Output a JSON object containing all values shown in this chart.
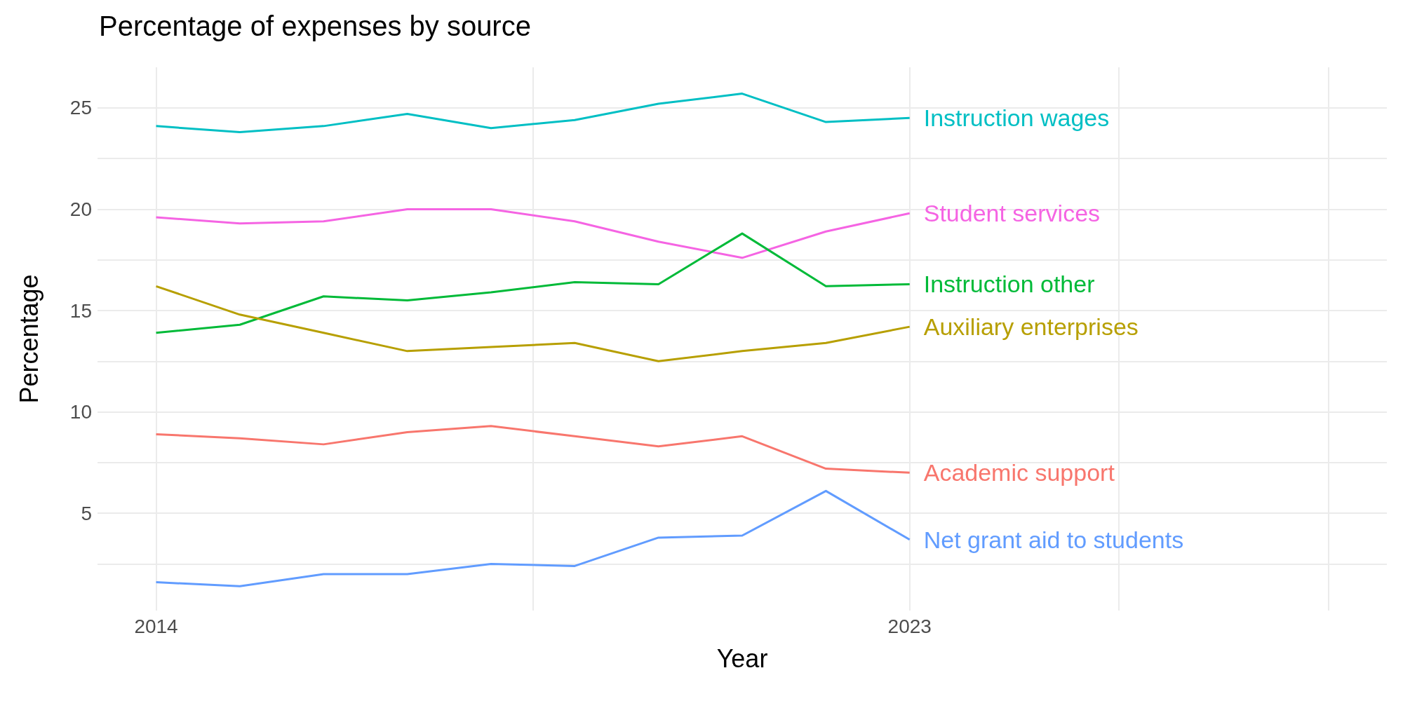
{
  "chart_data": {
    "type": "line",
    "title": "Percentage of expenses by source",
    "xlabel": "Year",
    "ylabel": "Percentage",
    "x": [
      2014,
      2015,
      2016,
      2017,
      2018,
      2019,
      2020,
      2021,
      2022,
      2023
    ],
    "xlim": [
      2013.3,
      2028.7
    ],
    "xticks": [
      2014,
      {
        "value": 2018.5,
        "label": null
      },
      2023,
      {
        "value": 2025.5,
        "label": null
      },
      {
        "value": 2028,
        "label": null
      }
    ],
    "ylim": [
      0.2,
      27
    ],
    "yticks": [
      {
        "value": 2.5,
        "label": null
      },
      5,
      {
        "value": 7.5,
        "label": null
      },
      10,
      {
        "value": 12.5,
        "label": null
      },
      15,
      {
        "value": 17.5,
        "label": null
      },
      20,
      {
        "value": 22.5,
        "label": null
      },
      25
    ],
    "grid": true,
    "legend": false,
    "marker": "none",
    "line_style": "solid",
    "series": [
      {
        "name": "Instruction wages",
        "color": "#00bfc4",
        "values": [
          24.1,
          23.8,
          24.1,
          24.7,
          24.0,
          24.4,
          25.2,
          25.7,
          24.3,
          24.5
        ]
      },
      {
        "name": "Student services",
        "color": "#f564e3",
        "values": [
          19.6,
          19.3,
          19.4,
          20.0,
          20.0,
          19.4,
          18.4,
          17.6,
          18.9,
          19.8
        ]
      },
      {
        "name": "Instruction other",
        "color": "#00ba38",
        "values": [
          13.9,
          14.3,
          15.7,
          15.5,
          15.9,
          16.4,
          16.3,
          18.8,
          16.2,
          16.3
        ]
      },
      {
        "name": "Auxiliary enterprises",
        "color": "#b79f00",
        "values": [
          16.2,
          14.8,
          13.9,
          13.0,
          13.2,
          13.4,
          12.5,
          13.0,
          13.4,
          14.2
        ]
      },
      {
        "name": "Academic support",
        "color": "#f8766d",
        "values": [
          8.9,
          8.7,
          8.4,
          9.0,
          9.3,
          8.8,
          8.3,
          8.8,
          7.2,
          7.0
        ]
      },
      {
        "name": "Net grant aid to students",
        "color": "#619cff",
        "values": [
          1.6,
          1.4,
          2.0,
          2.0,
          2.5,
          2.4,
          3.8,
          3.9,
          6.1,
          3.7
        ]
      }
    ]
  }
}
